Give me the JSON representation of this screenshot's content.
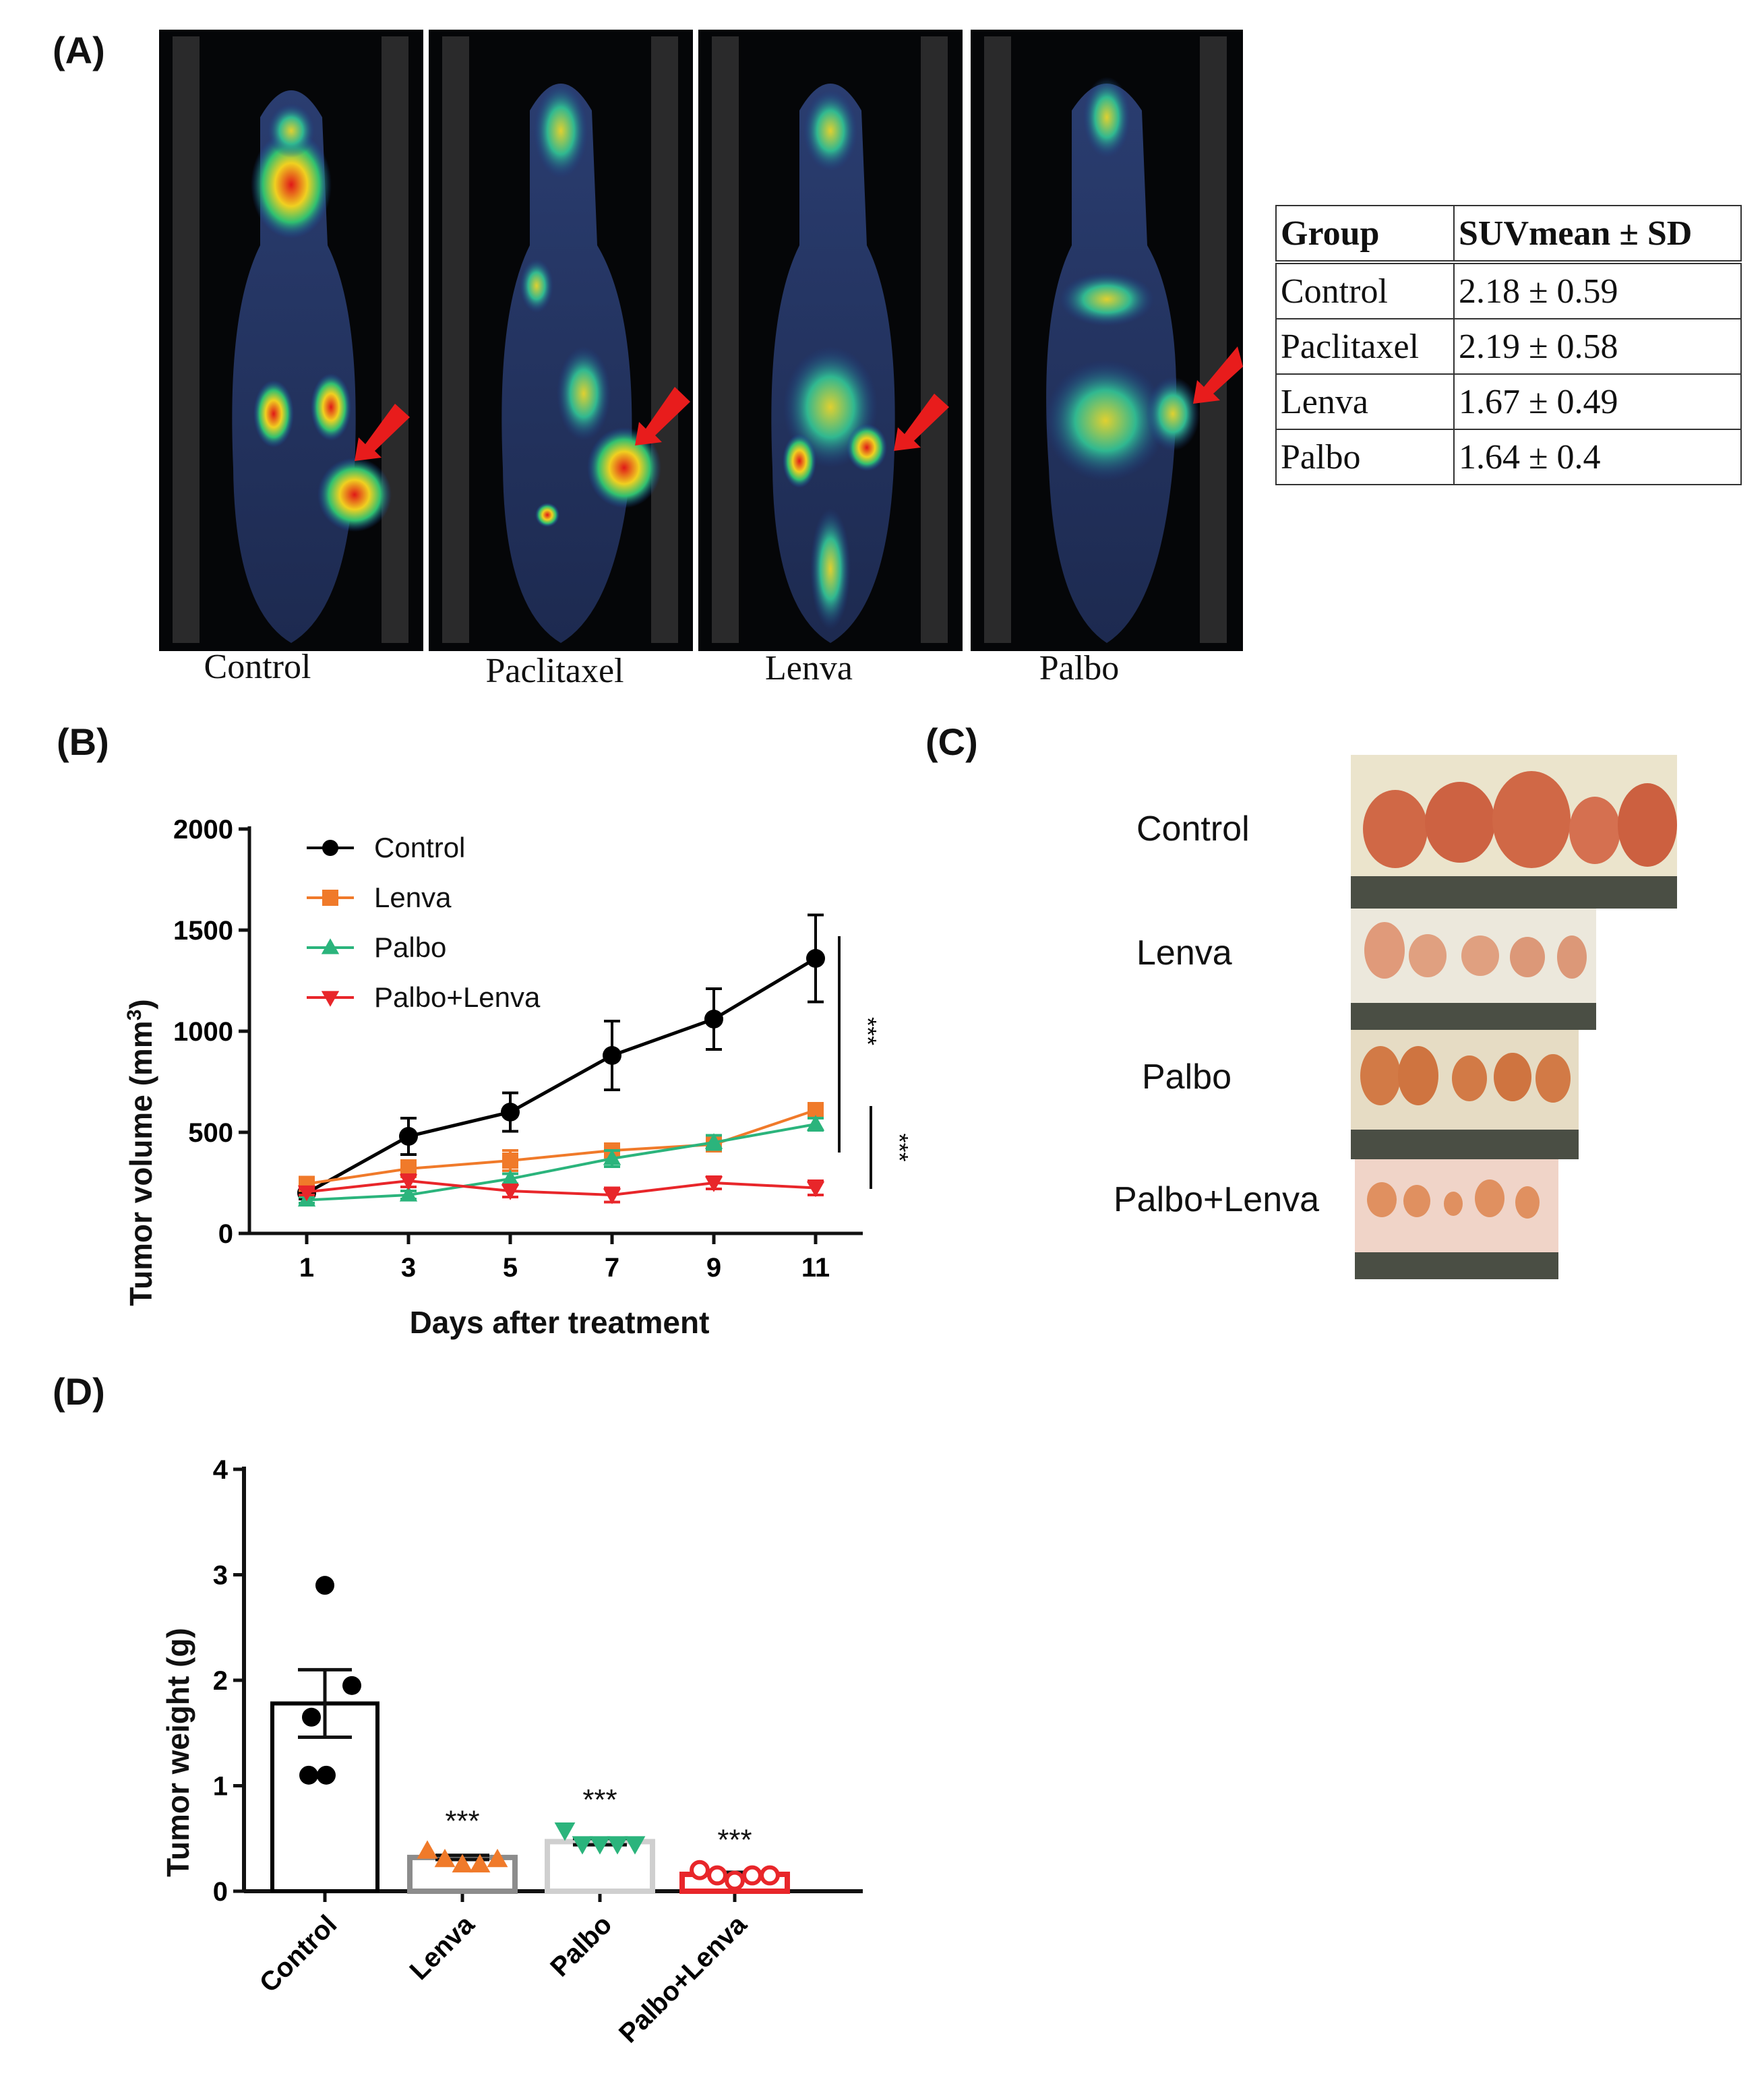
{
  "panels": {
    "a": "(A)",
    "b": "(B)",
    "c": "(C)",
    "d": "(D)"
  },
  "scans": [
    {
      "label": "Control"
    },
    {
      "label": "Paclitaxel"
    },
    {
      "label": "Lenva"
    },
    {
      "label": "Palbo"
    }
  ],
  "suv_table": {
    "headers": [
      "Group",
      "SUVmean ± SD"
    ],
    "rows": [
      [
        "Control",
        "2.18 ± 0.59"
      ],
      [
        "Paclitaxel",
        "2.19 ± 0.58"
      ],
      [
        "Lenva",
        "1.67 ± 0.49"
      ],
      [
        "Palbo",
        "1.64 ± 0.4"
      ]
    ]
  },
  "photos": [
    {
      "label": "Control"
    },
    {
      "label": "Lenva"
    },
    {
      "label": "Palbo"
    },
    {
      "label": "Palbo+Lenva"
    }
  ],
  "chart_data": [
    {
      "type": "line",
      "ylabel": "Tumor volume (mm",
      "ylabel_sup": "3",
      "ylabel_close": ")",
      "xlabel": "Days after treatment",
      "x": [
        1,
        3,
        5,
        7,
        9,
        11
      ],
      "ylim": [
        0,
        2000
      ],
      "yticks": [
        0,
        500,
        1000,
        1500,
        2000
      ],
      "significance": [
        "***",
        "***"
      ],
      "series": [
        {
          "name": "Control",
          "color": "#000000",
          "marker": "circle",
          "values": [
            200,
            480,
            600,
            880,
            1060,
            1360
          ],
          "errors": [
            30,
            90,
            95,
            170,
            150,
            215
          ]
        },
        {
          "name": "Lenva",
          "color": "#f07a2a",
          "marker": "square",
          "values": [
            245,
            320,
            360,
            410,
            440,
            610
          ],
          "errors": [
            20,
            40,
            50,
            30,
            30,
            30
          ]
        },
        {
          "name": "Palbo",
          "color": "#2bb47c",
          "marker": "triangle-up",
          "values": [
            165,
            190,
            270,
            370,
            450,
            540
          ],
          "errors": [
            15,
            20,
            25,
            40,
            35,
            30
          ]
        },
        {
          "name": "Palbo+Lenva",
          "color": "#e8262a",
          "marker": "triangle-down",
          "values": [
            205,
            260,
            210,
            190,
            250,
            225
          ],
          "errors": [
            15,
            30,
            30,
            35,
            30,
            35
          ]
        }
      ]
    },
    {
      "type": "bar",
      "ylabel": "Tumor weight (g)",
      "categories": [
        "Control",
        "Lenva",
        "Palbo",
        "Palbo+Lenva"
      ],
      "ylim": [
        0,
        4
      ],
      "yticks": [
        0,
        1,
        2,
        3,
        4
      ],
      "means": [
        1.78,
        0.32,
        0.47,
        0.16
      ],
      "sem": [
        0.32,
        0.02,
        0.03,
        0.02
      ],
      "points": [
        [
          2.9,
          1.95,
          1.65,
          1.1,
          1.1
        ],
        [
          0.38,
          0.3,
          0.25,
          0.25,
          0.3
        ],
        [
          0.58,
          0.45,
          0.45,
          0.45,
          0.45
        ],
        [
          0.2,
          0.15,
          0.1,
          0.15,
          0.15
        ]
      ],
      "colors": [
        "#000000",
        "#f07a2a",
        "#2bb47c",
        "#e8262a"
      ],
      "bar_edge_colors": [
        "#000000",
        "#8c8c8c",
        "#cfcfcf",
        "#e8262a"
      ],
      "markers": [
        "circle",
        "triangle-up",
        "triangle-down",
        "circle-open"
      ],
      "significance": [
        "",
        "***",
        "***",
        "***"
      ]
    }
  ]
}
